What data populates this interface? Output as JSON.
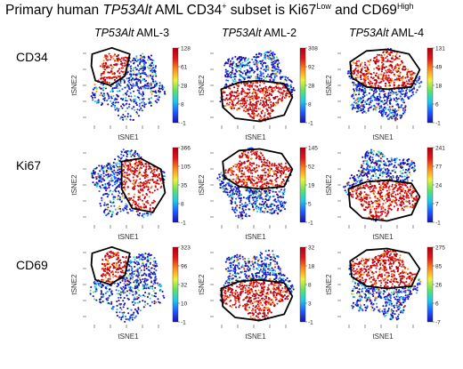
{
  "title": {
    "prefix": "Primary human ",
    "gene": "TP53Alt",
    "middle": " AML CD34",
    "plus": "+",
    "middle2": " subset is Ki67",
    "low": "Low",
    "and": " and CD69",
    "high": "High"
  },
  "columns": [
    {
      "gene": "TP53Alt",
      "sample": " AML-3"
    },
    {
      "gene": "TP53Alt",
      "sample": " AML-2"
    },
    {
      "gene": "TP53Alt",
      "sample": " AML-4"
    }
  ],
  "rows": [
    "CD34",
    "Ki67",
    "CD69"
  ],
  "axis": {
    "x": "tSNE1",
    "y": "tSNE2"
  },
  "chart_data": {
    "type": "scatter",
    "description_free": true,
    "xlabel": "tSNE1",
    "ylabel": "tSNE2",
    "colormap": [
      "#1a10b0",
      "#1f5bff",
      "#20c8e8",
      "#5de36a",
      "#f2ee3a",
      "#ff8c1a",
      "#e0181c",
      "#b0000e"
    ],
    "panels": [
      {
        "row": "CD34",
        "column": "AML-3",
        "colorbar_ticks": [
          "-1",
          "8",
          "28",
          "61",
          "128"
        ],
        "hotspot": "top-left"
      },
      {
        "row": "CD34",
        "column": "AML-2",
        "colorbar_ticks": [
          "-1",
          "8",
          "28",
          "92",
          "308"
        ],
        "hotspot": "bottom"
      },
      {
        "row": "CD34",
        "column": "AML-4",
        "colorbar_ticks": [
          "-1",
          "6",
          "18",
          "49",
          "131"
        ],
        "hotspot": "top"
      },
      {
        "row": "Ki67",
        "column": "AML-3",
        "colorbar_ticks": [
          "-1",
          "8",
          "35",
          "105",
          "366"
        ],
        "hotspot": "right"
      },
      {
        "row": "Ki67",
        "column": "AML-2",
        "colorbar_ticks": [
          "-1",
          "5",
          "19",
          "52",
          "145"
        ],
        "hotspot": "top"
      },
      {
        "row": "Ki67",
        "column": "AML-4",
        "colorbar_ticks": [
          "-1",
          "7",
          "24",
          "77",
          "241"
        ],
        "hotspot": "bottom"
      },
      {
        "row": "CD69",
        "column": "AML-3",
        "colorbar_ticks": [
          "-1",
          "10",
          "32",
          "96",
          "323"
        ],
        "hotspot": "top-left"
      },
      {
        "row": "CD69",
        "column": "AML-2",
        "colorbar_ticks": [
          "-1",
          "3",
          "8",
          "18",
          "32"
        ],
        "hotspot": "bottom"
      },
      {
        "row": "CD69",
        "column": "AML-4",
        "colorbar_ticks": [
          "-7",
          "6",
          "26",
          "85",
          "275"
        ],
        "hotspot": "top"
      }
    ]
  }
}
